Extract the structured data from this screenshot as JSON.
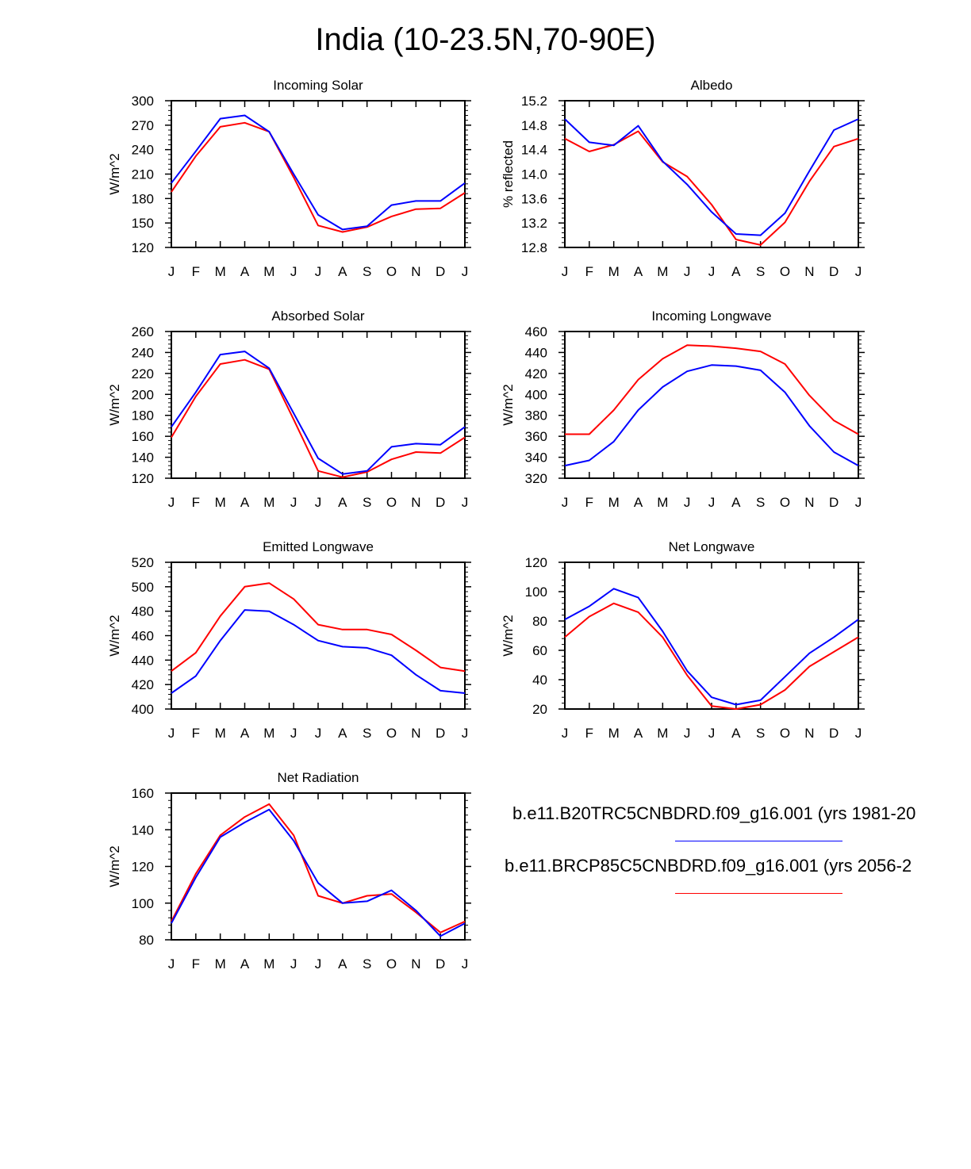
{
  "title": "India (10-23.5N,70-90E)",
  "legend": {
    "entries": [
      {
        "label": "b.e11.B20TRC5CNBDRD.f09_g16.001 (yrs 1981-20",
        "color": "#0000ff"
      },
      {
        "label": "b.e11.BRCP85C5CNBDRD.f09_g16.001 (yrs 2056-2",
        "color": "#ff0000"
      }
    ]
  },
  "chart_data": [
    {
      "type": "line",
      "title": "Incoming Solar",
      "ylabel": "W/m^2",
      "xlabel": "",
      "categories": [
        "J",
        "F",
        "M",
        "A",
        "M",
        "J",
        "J",
        "A",
        "S",
        "O",
        "N",
        "D",
        "J"
      ],
      "ylim": [
        120,
        300
      ],
      "yticks": [
        "120",
        "150",
        "180",
        "210",
        "240",
        "270",
        "300"
      ],
      "series": [
        {
          "name": "b.e11.B20TRC5CNBDRD.f09_g16.001",
          "color": "#0000ff",
          "values": [
            199,
            238,
            278,
            282,
            262,
            210,
            160,
            142,
            146,
            172,
            177,
            177,
            199
          ]
        },
        {
          "name": "b.e11.BRCP85C5CNBDRD.f09_g16.001",
          "color": "#ff0000",
          "values": [
            188,
            232,
            268,
            273,
            262,
            206,
            147,
            139,
            145,
            158,
            167,
            168,
            187
          ]
        }
      ]
    },
    {
      "type": "line",
      "title": "Albedo",
      "ylabel": "% reflected",
      "xlabel": "",
      "categories": [
        "J",
        "F",
        "M",
        "A",
        "M",
        "J",
        "J",
        "A",
        "S",
        "O",
        "N",
        "D",
        "J"
      ],
      "ylim": [
        12.8,
        15.2
      ],
      "yticks": [
        "12.8",
        "13.2",
        "13.6",
        "14.0",
        "14.4",
        "14.8",
        "15.2"
      ],
      "series": [
        {
          "name": "b.e11.B20TRC5CNBDRD.f09_g16.001",
          "color": "#0000ff",
          "values": [
            14.9,
            14.52,
            14.47,
            14.79,
            14.21,
            13.83,
            13.38,
            13.02,
            13.0,
            13.36,
            14.05,
            14.72,
            14.9
          ]
        },
        {
          "name": "b.e11.BRCP85C5CNBDRD.f09_g16.001",
          "color": "#ff0000",
          "values": [
            14.58,
            14.37,
            14.48,
            14.7,
            14.2,
            13.96,
            13.5,
            12.93,
            12.84,
            13.21,
            13.88,
            14.45,
            14.58
          ]
        }
      ]
    },
    {
      "type": "line",
      "title": "Absorbed Solar",
      "ylabel": "W/m^2",
      "xlabel": "",
      "categories": [
        "J",
        "F",
        "M",
        "A",
        "M",
        "J",
        "J",
        "A",
        "S",
        "O",
        "N",
        "D",
        "J"
      ],
      "ylim": [
        120,
        260
      ],
      "yticks": [
        "120",
        "140",
        "160",
        "180",
        "200",
        "220",
        "240",
        "260"
      ],
      "series": [
        {
          "name": "b.e11.B20TRC5CNBDRD.f09_g16.001",
          "color": "#0000ff",
          "values": [
            169,
            202,
            238,
            241,
            225,
            182,
            139,
            124,
            127,
            150,
            153,
            152,
            169
          ]
        },
        {
          "name": "b.e11.BRCP85C5CNBDRD.f09_g16.001",
          "color": "#ff0000",
          "values": [
            159,
            198,
            229,
            233,
            224,
            176,
            127,
            121,
            126,
            138,
            145,
            144,
            159
          ]
        }
      ]
    },
    {
      "type": "line",
      "title": "Incoming Longwave",
      "ylabel": "W/m^2",
      "xlabel": "",
      "categories": [
        "J",
        "F",
        "M",
        "A",
        "M",
        "J",
        "J",
        "A",
        "S",
        "O",
        "N",
        "D",
        "J"
      ],
      "ylim": [
        320,
        460
      ],
      "yticks": [
        "320",
        "340",
        "360",
        "380",
        "400",
        "420",
        "440",
        "460"
      ],
      "series": [
        {
          "name": "b.e11.B20TRC5CNBDRD.f09_g16.001",
          "color": "#0000ff",
          "values": [
            332,
            337,
            355,
            385,
            407,
            422,
            428,
            427,
            423,
            402,
            370,
            345,
            332
          ]
        },
        {
          "name": "b.e11.BRCP85C5CNBDRD.f09_g16.001",
          "color": "#ff0000",
          "values": [
            362,
            362,
            385,
            414,
            434,
            447,
            446,
            444,
            441,
            429,
            399,
            375,
            362
          ]
        }
      ]
    },
    {
      "type": "line",
      "title": "Emitted Longwave",
      "ylabel": "W/m^2",
      "xlabel": "",
      "categories": [
        "J",
        "F",
        "M",
        "A",
        "M",
        "J",
        "J",
        "A",
        "S",
        "O",
        "N",
        "D",
        "J"
      ],
      "ylim": [
        400,
        520
      ],
      "yticks": [
        "400",
        "420",
        "440",
        "460",
        "480",
        "500",
        "520"
      ],
      "series": [
        {
          "name": "b.e11.B20TRC5CNBDRD.f09_g16.001",
          "color": "#0000ff",
          "values": [
            413,
            427,
            456,
            481,
            480,
            469,
            456,
            451,
            450,
            444,
            428,
            415,
            413
          ]
        },
        {
          "name": "b.e11.BRCP85C5CNBDRD.f09_g16.001",
          "color": "#ff0000",
          "values": [
            431,
            446,
            476,
            500,
            503,
            490,
            469,
            465,
            465,
            461,
            448,
            434,
            431
          ]
        }
      ]
    },
    {
      "type": "line",
      "title": "Net Longwave",
      "ylabel": "W/m^2",
      "xlabel": "",
      "categories": [
        "J",
        "F",
        "M",
        "A",
        "M",
        "J",
        "J",
        "A",
        "S",
        "O",
        "N",
        "D",
        "J"
      ],
      "ylim": [
        20,
        120
      ],
      "yticks": [
        "20",
        "40",
        "60",
        "80",
        "100",
        "120"
      ],
      "series": [
        {
          "name": "b.e11.B20TRC5CNBDRD.f09_g16.001",
          "color": "#0000ff",
          "values": [
            81,
            90,
            102,
            96,
            73,
            46,
            28,
            23,
            26,
            42,
            58,
            69,
            81
          ]
        },
        {
          "name": "b.e11.BRCP85C5CNBDRD.f09_g16.001",
          "color": "#ff0000",
          "values": [
            69,
            83,
            92,
            86,
            69,
            43,
            22,
            20,
            23,
            33,
            49,
            59,
            69
          ]
        }
      ]
    },
    {
      "type": "line",
      "title": "Net Radiation",
      "ylabel": "W/m^2",
      "xlabel": "",
      "categories": [
        "J",
        "F",
        "M",
        "A",
        "M",
        "J",
        "J",
        "A",
        "S",
        "O",
        "N",
        "D",
        "J"
      ],
      "ylim": [
        80,
        160
      ],
      "yticks": [
        "80",
        "100",
        "120",
        "140",
        "160"
      ],
      "series": [
        {
          "name": "b.e11.B20TRC5CNBDRD.f09_g16.001",
          "color": "#0000ff",
          "values": [
            89,
            114,
            136,
            144,
            151,
            134,
            111,
            100,
            101,
            107,
            96,
            82,
            89
          ]
        },
        {
          "name": "b.e11.BRCP85C5CNBDRD.f09_g16.001",
          "color": "#ff0000",
          "values": [
            90,
            116,
            137,
            147,
            154,
            137,
            104,
            100,
            104,
            105,
            95,
            84,
            90
          ]
        }
      ]
    }
  ]
}
